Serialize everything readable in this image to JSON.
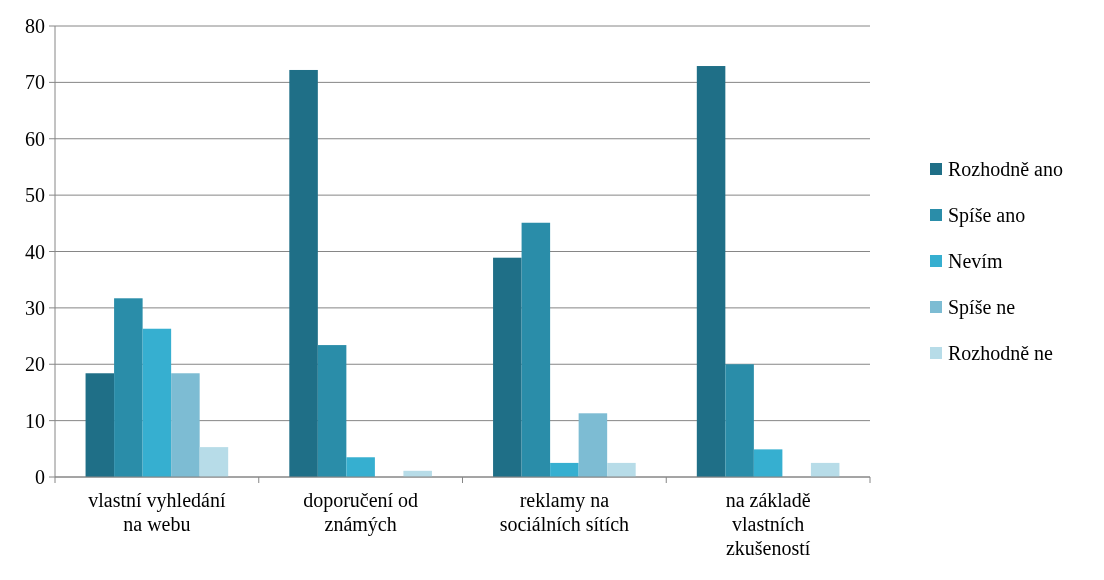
{
  "chart_data": {
    "type": "bar",
    "categories": [
      "vlastní vyhledání na webu",
      "doporučení od známých",
      "reklamy na sociálních sítích",
      "na základě vlastních zkušeností"
    ],
    "series": [
      {
        "name": "Rozhodně ano",
        "color": "#1f6f87",
        "values": [
          18.4,
          72.2,
          38.9,
          72.9
        ]
      },
      {
        "name": "Spíše ano",
        "color": "#2a8da9",
        "values": [
          31.7,
          23.4,
          45.1,
          20
        ]
      },
      {
        "name": "Nevím",
        "color": "#36afd0",
        "values": [
          26.3,
          3.5,
          2.5,
          4.9
        ]
      },
      {
        "name": "Spíše ne",
        "color": "#7dbcd3",
        "values": [
          18.4,
          0,
          11.3,
          0
        ]
      },
      {
        "name": "Rozhodně ne",
        "color": "#b7dce8",
        "values": [
          5.3,
          1.1,
          2.5,
          2.5
        ]
      }
    ],
    "ylim": [
      0,
      80
    ],
    "yticks": [
      0,
      10,
      20,
      30,
      40,
      50,
      60,
      70,
      80
    ],
    "grid": "y",
    "legend": "right"
  }
}
